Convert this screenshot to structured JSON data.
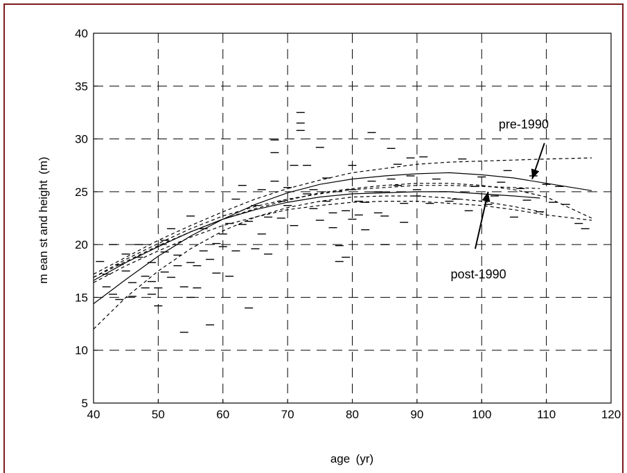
{
  "chart_data": {
    "type": "scatter",
    "title": "",
    "xlabel": "age (yr)",
    "ylabel": "m ean st and height (m)",
    "xlim": [
      40,
      120
    ],
    "ylim": [
      5,
      40
    ],
    "xticks": [
      40,
      50,
      60,
      70,
      80,
      90,
      100,
      110,
      120
    ],
    "yticks": [
      5,
      10,
      15,
      20,
      25,
      30,
      35,
      40
    ],
    "grid": true,
    "frame_color": "#7a1a1a",
    "series": [
      {
        "marker": "dash",
        "points": [
          [
            41,
            18.4
          ],
          [
            42,
            17.2
          ],
          [
            42,
            16.0
          ],
          [
            43,
            15.3
          ],
          [
            43,
            20.0
          ],
          [
            44,
            14.8
          ],
          [
            44,
            18.1
          ],
          [
            45,
            17.5
          ],
          [
            45,
            19.1
          ],
          [
            46,
            16.4
          ],
          [
            46,
            15.1
          ],
          [
            47,
            18.8
          ],
          [
            47,
            20.0
          ],
          [
            48,
            15.9
          ],
          [
            48,
            17.0
          ],
          [
            49,
            18.3
          ],
          [
            49,
            16.5
          ],
          [
            49,
            15.3
          ],
          [
            50,
            14.2
          ],
          [
            50,
            15.9
          ],
          [
            51,
            17.4
          ],
          [
            51,
            19.3
          ],
          [
            51,
            20.4
          ],
          [
            52,
            21.5
          ],
          [
            52,
            16.9
          ],
          [
            53,
            18.0
          ],
          [
            53,
            19.0
          ],
          [
            54,
            11.7
          ],
          [
            54,
            16.0
          ],
          [
            55,
            15.0
          ],
          [
            55,
            18.3
          ],
          [
            55,
            22.7
          ],
          [
            56,
            15.9
          ],
          [
            56,
            18.0
          ],
          [
            57,
            19.4
          ],
          [
            57,
            21.5
          ],
          [
            58,
            12.4
          ],
          [
            58,
            18.6
          ],
          [
            59,
            17.3
          ],
          [
            59,
            20.1
          ],
          [
            60,
            19.8
          ],
          [
            60,
            21.0
          ],
          [
            61,
            17.0
          ],
          [
            61,
            22.0
          ],
          [
            62,
            24.3
          ],
          [
            62,
            19.4
          ],
          [
            63,
            21.9
          ],
          [
            63,
            25.6
          ],
          [
            64,
            14.0
          ],
          [
            64,
            22.2
          ],
          [
            65,
            19.6
          ],
          [
            65,
            23.7
          ],
          [
            66,
            25.2
          ],
          [
            66,
            21.0
          ],
          [
            67,
            19.1
          ],
          [
            67,
            22.6
          ],
          [
            68,
            28.7
          ],
          [
            68,
            29.9
          ],
          [
            68,
            26.0
          ],
          [
            69,
            24.1
          ],
          [
            69,
            22.5
          ],
          [
            70,
            25.4
          ],
          [
            70,
            23.7
          ],
          [
            71,
            27.5
          ],
          [
            71,
            21.8
          ],
          [
            72,
            32.5
          ],
          [
            72,
            31.5
          ],
          [
            72,
            30.8
          ],
          [
            73,
            27.5
          ],
          [
            73,
            24.8
          ],
          [
            74,
            25.2
          ],
          [
            74,
            23.4
          ],
          [
            75,
            22.3
          ],
          [
            75,
            29.2
          ],
          [
            76,
            26.3
          ],
          [
            76,
            24.1
          ],
          [
            77,
            23.0
          ],
          [
            77,
            21.6
          ],
          [
            78,
            19.9
          ],
          [
            78,
            18.4
          ],
          [
            79,
            18.8
          ],
          [
            79,
            23.2
          ],
          [
            80,
            25.2
          ],
          [
            80,
            27.5
          ],
          [
            80,
            22.4
          ],
          [
            81,
            24.1
          ],
          [
            81,
            22.8
          ],
          [
            82,
            24.0
          ],
          [
            82,
            21.4
          ],
          [
            83,
            26.0
          ],
          [
            83,
            30.6
          ],
          [
            84,
            23.0
          ],
          [
            84,
            25.0
          ],
          [
            85,
            22.7
          ],
          [
            85,
            20.0
          ],
          [
            86,
            29.1
          ],
          [
            86,
            26.2
          ],
          [
            87,
            27.6
          ],
          [
            87,
            25.6
          ],
          [
            88,
            23.9
          ],
          [
            88,
            22.1
          ],
          [
            89,
            28.2
          ],
          [
            89,
            26.5
          ],
          [
            90,
            25.2
          ],
          [
            90,
            24.6
          ],
          [
            91,
            28.3
          ],
          [
            92,
            23.9
          ],
          [
            93,
            26.2
          ],
          [
            94,
            25.0
          ],
          [
            95,
            24.1
          ],
          [
            96,
            24.3
          ],
          [
            97,
            28.1
          ],
          [
            98,
            23.2
          ],
          [
            99,
            25.5
          ],
          [
            100,
            26.4
          ],
          [
            101,
            23.8
          ],
          [
            102,
            24.6
          ],
          [
            103,
            25.9
          ],
          [
            104,
            27.0
          ],
          [
            105,
            22.6
          ],
          [
            106,
            25.3
          ],
          [
            107,
            24.2
          ],
          [
            108,
            26.5
          ],
          [
            109,
            23.1
          ],
          [
            110,
            25.7
          ],
          [
            111,
            24.0
          ],
          [
            112,
            25.5
          ],
          [
            113,
            23.8
          ],
          [
            115,
            22.0
          ],
          [
            116,
            21.5
          ]
        ]
      }
    ],
    "curves": [
      {
        "style": "solid",
        "points": [
          [
            40,
            16.6
          ],
          [
            45,
            18.3
          ],
          [
            50,
            19.8
          ],
          [
            55,
            21.2
          ],
          [
            60,
            22.4
          ],
          [
            65,
            23.3
          ],
          [
            70,
            24.0
          ],
          [
            75,
            24.5
          ],
          [
            80,
            24.8
          ],
          [
            85,
            24.9
          ],
          [
            90,
            25.0
          ],
          [
            95,
            25.0
          ],
          [
            100,
            24.8
          ],
          [
            105,
            24.6
          ],
          [
            109,
            24.4
          ]
        ]
      },
      {
        "style": "solid",
        "points": [
          [
            40,
            14.4
          ],
          [
            45,
            16.7
          ],
          [
            50,
            18.9
          ],
          [
            55,
            20.8
          ],
          [
            60,
            22.4
          ],
          [
            65,
            23.8
          ],
          [
            70,
            24.9
          ],
          [
            75,
            25.7
          ],
          [
            80,
            26.2
          ],
          [
            85,
            26.5
          ],
          [
            90,
            26.7
          ],
          [
            95,
            26.8
          ],
          [
            100,
            26.6
          ],
          [
            105,
            26.3
          ],
          [
            110,
            25.8
          ],
          [
            117,
            25.1
          ]
        ]
      },
      {
        "style": "dashed",
        "points": [
          [
            40,
            12.0
          ],
          [
            45,
            15.0
          ],
          [
            50,
            17.5
          ],
          [
            55,
            19.6
          ],
          [
            60,
            21.3
          ],
          [
            65,
            22.6
          ],
          [
            70,
            23.5
          ],
          [
            75,
            24.1
          ],
          [
            80,
            24.5
          ],
          [
            85,
            24.6
          ],
          [
            90,
            24.6
          ],
          [
            95,
            24.4
          ],
          [
            100,
            24.1
          ],
          [
            105,
            23.6
          ],
          [
            110,
            23.0
          ]
        ]
      },
      {
        "style": "dashed",
        "points": [
          [
            40,
            16.9
          ],
          [
            45,
            18.6
          ],
          [
            50,
            20.1
          ],
          [
            55,
            21.5
          ],
          [
            60,
            22.7
          ],
          [
            65,
            23.6
          ],
          [
            70,
            24.3
          ],
          [
            75,
            24.8
          ],
          [
            80,
            25.2
          ],
          [
            85,
            25.4
          ],
          [
            90,
            25.6
          ],
          [
            95,
            25.6
          ],
          [
            100,
            25.5
          ],
          [
            105,
            25.4
          ],
          [
            109,
            25.3
          ]
        ]
      },
      {
        "style": "dashed",
        "points": [
          [
            40,
            16.4
          ],
          [
            45,
            18.0
          ],
          [
            50,
            19.4
          ],
          [
            55,
            20.7
          ],
          [
            60,
            21.8
          ],
          [
            65,
            22.6
          ],
          [
            70,
            23.3
          ],
          [
            75,
            23.7
          ],
          [
            80,
            24.0
          ],
          [
            85,
            24.1
          ],
          [
            90,
            24.1
          ],
          [
            95,
            23.9
          ],
          [
            100,
            23.7
          ],
          [
            105,
            23.3
          ],
          [
            110,
            22.8
          ],
          [
            117,
            22.3
          ]
        ]
      },
      {
        "style": "dashed",
        "points": [
          [
            40,
            17.2
          ],
          [
            45,
            18.8
          ],
          [
            50,
            20.4
          ],
          [
            55,
            21.8
          ],
          [
            60,
            23.1
          ],
          [
            65,
            24.3
          ],
          [
            70,
            25.3
          ],
          [
            75,
            26.1
          ],
          [
            80,
            26.8
          ],
          [
            85,
            27.2
          ],
          [
            90,
            27.6
          ],
          [
            95,
            27.8
          ],
          [
            100,
            27.9
          ],
          [
            105,
            28.0
          ],
          [
            110,
            28.1
          ],
          [
            117,
            28.2
          ]
        ]
      },
      {
        "style": "dashed",
        "points": [
          [
            40,
            16.9
          ],
          [
            45,
            18.4
          ],
          [
            50,
            19.9
          ],
          [
            55,
            21.2
          ],
          [
            60,
            22.4
          ],
          [
            65,
            23.4
          ],
          [
            70,
            24.2
          ],
          [
            75,
            24.9
          ],
          [
            80,
            25.3
          ],
          [
            85,
            25.6
          ],
          [
            90,
            25.8
          ],
          [
            95,
            25.8
          ],
          [
            100,
            25.6
          ],
          [
            105,
            25.2
          ],
          [
            110,
            24.5
          ],
          [
            117,
            22.5
          ]
        ]
      }
    ],
    "annotations": [
      {
        "text": "pre-1990",
        "label_at": [
          106.5,
          31.0
        ],
        "arrow_from": [
          109.7,
          29.6
        ],
        "arrow_to": [
          107.8,
          26.2
        ]
      },
      {
        "text": "post-1990",
        "label_at": [
          99.5,
          16.8
        ],
        "arrow_from": [
          99.0,
          19.6
        ],
        "arrow_to": [
          101.0,
          25.0
        ]
      }
    ]
  }
}
